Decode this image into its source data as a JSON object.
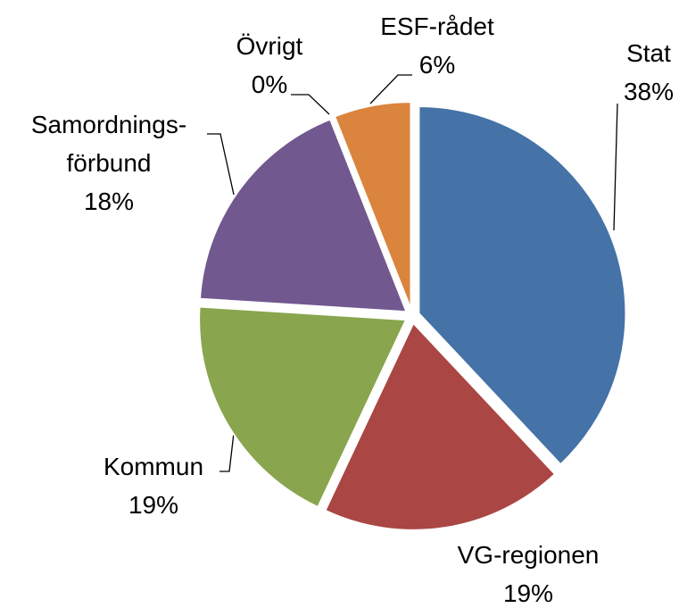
{
  "chart_data": {
    "type": "pie",
    "categories": [
      "Stat",
      "VG-regionen",
      "Kommun",
      "Samordnings-förbund",
      "Övrigt",
      "ESF-rådet"
    ],
    "values": [
      38,
      19,
      19,
      18,
      0,
      6
    ],
    "value_labels": [
      "38%",
      "19%",
      "19%",
      "18%",
      "0%",
      "6%"
    ],
    "colors": [
      "#4572a7",
      "#aa4643",
      "#89a54e",
      "#71588f",
      "#4198af",
      "#db843d"
    ]
  }
}
